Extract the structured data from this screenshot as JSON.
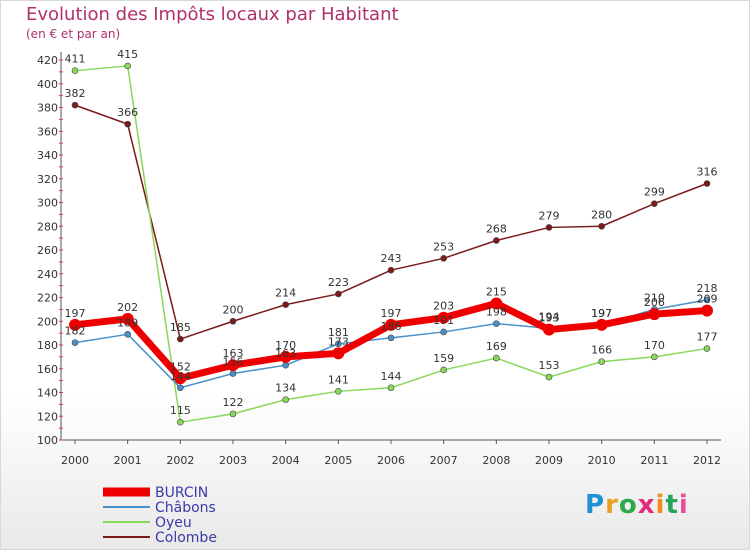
{
  "title": "Evolution des Impôts locaux par Habitant",
  "subtitle": "(en € et par an)",
  "brand": {
    "letters": [
      "P",
      "r",
      "o",
      "x",
      "i",
      "t",
      "i"
    ],
    "colors": [
      "#1f8fd6",
      "#e8a020",
      "#2da84a",
      "#e02b7a",
      "#f08c20",
      "#27a35a",
      "#e84c9c"
    ]
  },
  "chart_data": {
    "type": "line",
    "title": "Evolution des Impôts locaux par Habitant",
    "subtitle": "(en € et par an)",
    "xlabel": "",
    "ylabel": "",
    "x": [
      2000,
      2001,
      2002,
      2003,
      2004,
      2005,
      2006,
      2007,
      2008,
      2009,
      2010,
      2011,
      2012
    ],
    "ylim": [
      100,
      420
    ],
    "yticks": [
      100,
      120,
      140,
      160,
      180,
      200,
      220,
      240,
      260,
      280,
      300,
      320,
      340,
      360,
      380,
      400,
      420
    ],
    "grid": false,
    "legend_position": "bottom-left",
    "series": [
      {
        "name": "Colombe",
        "color": "#7a1a1a",
        "values": [
          382,
          366,
          185,
          200,
          214,
          223,
          243,
          253,
          268,
          279,
          280,
          299,
          316
        ]
      },
      {
        "name": "Oyeu",
        "color": "#88d85a",
        "values": [
          411,
          415,
          115,
          122,
          134,
          141,
          144,
          159,
          169,
          153,
          166,
          170,
          177
        ]
      },
      {
        "name": "Châbons",
        "color": "#4a90c8",
        "values": [
          182,
          189,
          144,
          156,
          163,
          181,
          186,
          191,
          198,
          194,
          197,
          210,
          218
        ]
      },
      {
        "name": "BURCIN",
        "color": "#ee0000",
        "values": [
          197,
          202,
          152,
          163,
          170,
          173,
          197,
          203,
          215,
          193,
          197,
          206,
          209
        ]
      }
    ],
    "legend_order": [
      "BURCIN",
      "Châbons",
      "Oyeu",
      "Colombe"
    ]
  }
}
